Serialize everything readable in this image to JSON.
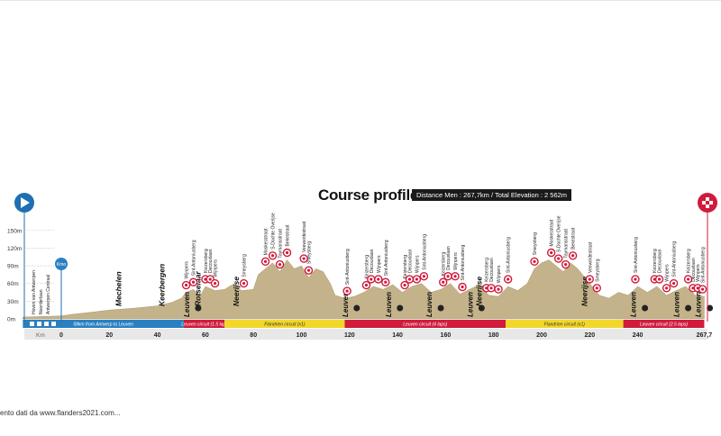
{
  "title": "Course profile",
  "stats": "Distance Men : 267,7km / Total Elevation : 2 562m",
  "footer": "ento dati da www.flanders2021.com...",
  "start_label": "Antwerpen Centraal",
  "colors": {
    "profile": "#c4b38a",
    "blue": "#2a7fc1",
    "red": "#d01b3c",
    "yellow": "#f2d72a"
  },
  "chart_data": {
    "type": "area",
    "title": "Course profile",
    "y_ticks": [
      "150m",
      "120m",
      "90m",
      "60m",
      "30m",
      "0m"
    ],
    "x_ticks": [
      "0",
      "20",
      "40",
      "60",
      "80",
      "100",
      "120",
      "140",
      "160",
      "180",
      "200",
      "220",
      "240",
      "267,7"
    ],
    "km_label": "Km",
    "km_marker": "Kmo",
    "profile": [
      [
        0,
        5
      ],
      [
        5,
        8
      ],
      [
        10,
        10
      ],
      [
        20,
        15
      ],
      [
        30,
        18
      ],
      [
        40,
        22
      ],
      [
        46,
        28
      ],
      [
        50,
        35
      ],
      [
        52,
        45
      ],
      [
        55,
        50
      ],
      [
        58,
        40
      ],
      [
        60,
        55
      ],
      [
        64,
        48
      ],
      [
        68,
        50
      ],
      [
        72,
        60
      ],
      [
        75,
        48
      ],
      [
        80,
        50
      ],
      [
        82,
        75
      ],
      [
        85,
        85
      ],
      [
        88,
        95
      ],
      [
        91,
        80
      ],
      [
        94,
        100
      ],
      [
        97,
        85
      ],
      [
        100,
        90
      ],
      [
        103,
        70
      ],
      [
        106,
        85
      ],
      [
        109,
        80
      ],
      [
        112,
        60
      ],
      [
        114,
        40
      ],
      [
        118,
        35
      ],
      [
        122,
        38
      ],
      [
        126,
        45
      ],
      [
        130,
        55
      ],
      [
        134,
        50
      ],
      [
        138,
        58
      ],
      [
        142,
        45
      ],
      [
        146,
        55
      ],
      [
        150,
        60
      ],
      [
        154,
        45
      ],
      [
        158,
        50
      ],
      [
        162,
        60
      ],
      [
        166,
        42
      ],
      [
        170,
        50
      ],
      [
        174,
        58
      ],
      [
        178,
        40
      ],
      [
        182,
        38
      ],
      [
        186,
        55
      ],
      [
        190,
        48
      ],
      [
        194,
        60
      ],
      [
        197,
        85
      ],
      [
        200,
        95
      ],
      [
        203,
        100
      ],
      [
        206,
        90
      ],
      [
        209,
        80
      ],
      [
        212,
        95
      ],
      [
        215,
        85
      ],
      [
        218,
        70
      ],
      [
        221,
        55
      ],
      [
        224,
        40
      ],
      [
        228,
        35
      ],
      [
        232,
        45
      ],
      [
        236,
        40
      ],
      [
        240,
        55
      ],
      [
        244,
        45
      ],
      [
        248,
        55
      ],
      [
        252,
        40
      ],
      [
        256,
        48
      ],
      [
        260,
        55
      ],
      [
        264,
        40
      ],
      [
        267.7,
        38
      ]
    ],
    "sections": [
      {
        "label": "58km from Antwerp to Leuven",
        "color": "blue",
        "from": -16,
        "to": 51
      },
      {
        "label": "Leuven circuit (1.5 lap)",
        "color": "red",
        "from": 51,
        "to": 68
      },
      {
        "label": "Flandrien circuit (x1)",
        "color": "yellow",
        "from": 68,
        "to": 118
      },
      {
        "label": "Leuven circuit (4 laps)",
        "color": "red",
        "from": 118,
        "to": 185
      },
      {
        "label": "Flandrien circuit (x1)",
        "color": "yellow",
        "from": 185,
        "to": 234
      },
      {
        "label": "Leuven circuit (2.5 laps)",
        "color": "red",
        "from": 234,
        "to": 267.7
      }
    ],
    "towns": [
      {
        "km": 25,
        "name": "Mechelen"
      },
      {
        "km": 43,
        "name": "Keerbergen"
      },
      {
        "km": 58,
        "name": "Rotselaar"
      },
      {
        "km": 74,
        "name": "Neerijse"
      },
      {
        "km": 175,
        "name": "Neerijse"
      },
      {
        "km": 219,
        "name": "Neerijse"
      }
    ],
    "leuven": [
      54,
      120,
      138,
      155,
      172,
      240,
      258,
      267
    ],
    "start_names": [
      "Hoven van Antwerpen",
      "Noorderlaan",
      "Antwerpen Centraal"
    ],
    "climbs": [
      {
        "km": 52,
        "name": "Wijnpers"
      },
      {
        "km": 55,
        "name": "Sint-Antoniusberg"
      },
      {
        "km": 60,
        "name": "Keizersberg"
      },
      {
        "km": 62,
        "name": "Decouxlaan"
      },
      {
        "km": 64,
        "name": "Wijnpers"
      },
      {
        "km": 76,
        "name": "Smeysberg"
      },
      {
        "km": 85,
        "name": "Moskesstraat"
      },
      {
        "km": 88,
        "name": "S-Dochte Overijse"
      },
      {
        "km": 91,
        "name": "Taymansstraat"
      },
      {
        "km": 94,
        "name": "Bekestraat"
      },
      {
        "km": 101,
        "name": "Veeweidestraat"
      },
      {
        "km": 103,
        "name": "Smeysberg"
      },
      {
        "km": 119,
        "name": "Sint-Antoniusberg"
      },
      {
        "km": 127,
        "name": "Keizersberg"
      },
      {
        "km": 129,
        "name": "Decouxlaan"
      },
      {
        "km": 132,
        "name": "Wijnpers"
      },
      {
        "km": 135,
        "name": "Sint-Antoniusberg"
      },
      {
        "km": 143,
        "name": "Keizersberg"
      },
      {
        "km": 145,
        "name": "Decouxlaan"
      },
      {
        "km": 148,
        "name": "Wijnpers"
      },
      {
        "km": 151,
        "name": "Sint-Antoniusberg"
      },
      {
        "km": 159,
        "name": "Keizersberg"
      },
      {
        "km": 161,
        "name": "Decouxlaan"
      },
      {
        "km": 164,
        "name": "Wijnpers"
      },
      {
        "km": 167,
        "name": "Sint-Antoniusberg"
      },
      {
        "km": 177,
        "name": "Keizersberg"
      },
      {
        "km": 179,
        "name": "Decouxlaan"
      },
      {
        "km": 182,
        "name": "Wijnpers"
      },
      {
        "km": 186,
        "name": "Sint-Antoniusberg"
      },
      {
        "km": 197,
        "name": "Smeysberg"
      },
      {
        "km": 204,
        "name": "Moskesstraat"
      },
      {
        "km": 207,
        "name": "S-Dochte Overijse"
      },
      {
        "km": 210,
        "name": "Taymansstraat"
      },
      {
        "km": 213,
        "name": "Bekestraat"
      },
      {
        "km": 220,
        "name": "Veeweidestraat"
      },
      {
        "km": 223,
        "name": "Smeysberg"
      },
      {
        "km": 239,
        "name": "Sint-Antoniusberg"
      },
      {
        "km": 247,
        "name": "Keizersberg"
      },
      {
        "km": 249,
        "name": "Decouxlaan"
      },
      {
        "km": 252,
        "name": "Wijnpers"
      },
      {
        "km": 255,
        "name": "Sint-Antoniusberg"
      },
      {
        "km": 261,
        "name": "Keizersberg"
      },
      {
        "km": 263,
        "name": "Decouxlaan"
      },
      {
        "km": 265,
        "name": "Wijnpers"
      },
      {
        "km": 267,
        "name": "Sint-Antoniusberg"
      }
    ]
  }
}
